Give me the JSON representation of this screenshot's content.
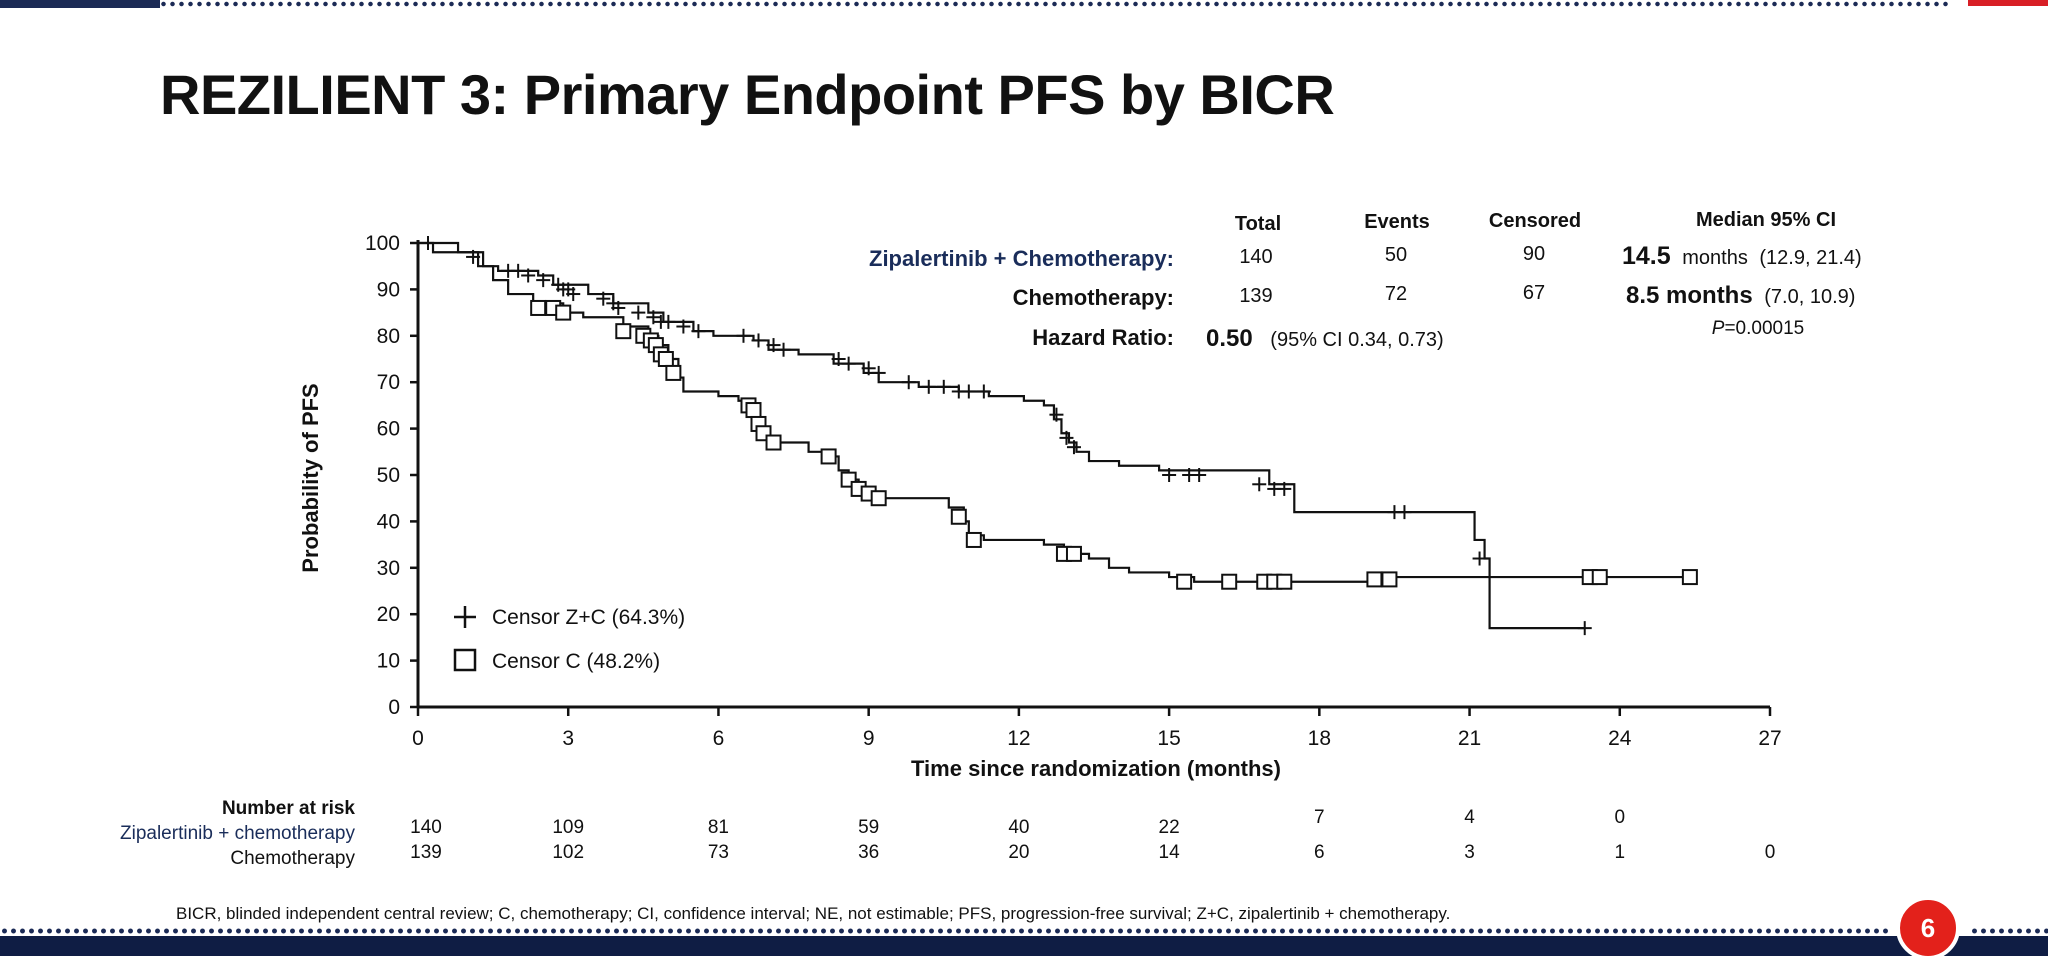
{
  "slide": {
    "title": "REZILIENT 3: Primary Endpoint PFS by BICR",
    "page_number": "6",
    "footnote": "BICR, blinded independent central review; C, chemotherapy; CI, confidence interval; NE, not estimable; PFS, progression-free survival; Z+C, zipalertinib + chemotherapy.",
    "colors": {
      "accent_red": "#e3211b",
      "navy": "#0f1d44",
      "zc_label": "#1a2d5a"
    }
  },
  "chart_data": {
    "type": "line",
    "xlabel": "Time since randomization (months)",
    "ylabel": "Probability of PFS",
    "xlim": [
      0,
      27
    ],
    "ylim": [
      0,
      100
    ],
    "x_ticks": [
      "0",
      "3",
      "6",
      "9",
      "12",
      "15",
      "18",
      "21",
      "24",
      "27"
    ],
    "y_ticks": [
      "0",
      "10",
      "20",
      "30",
      "40",
      "50",
      "60",
      "70",
      "80",
      "90",
      "100"
    ],
    "summary_table": {
      "headers": [
        "Total",
        "Events",
        "Censored",
        "Median 95% CI"
      ],
      "rows": [
        {
          "label": "Zipalertinib + Chemotherapy:",
          "total": "140",
          "events": "50",
          "censored": "90",
          "median": "14.5",
          "median_unit": "months",
          "ci": "(12.9, 21.4)"
        },
        {
          "label": "Chemotherapy:",
          "total": "139",
          "events": "72",
          "censored": "67",
          "median": "8.5 months",
          "median_unit": "",
          "ci": "(7.0, 10.9)"
        }
      ],
      "hazard_label": "Hazard Ratio:",
      "hazard_value": "0.50",
      "hazard_ci": "(95% CI 0.34, 0.73)",
      "p_prefix": "P",
      "p_value": "=0.00015"
    },
    "legend": [
      {
        "marker": "plus",
        "label": "Censor Z+C (64.3%)"
      },
      {
        "marker": "square",
        "label": "Censor C (48.2%)"
      }
    ],
    "legend_position": "bottom-left",
    "series": [
      {
        "name": "Zipalertinib + Chemotherapy",
        "marker": "plus",
        "steps": [
          [
            0,
            100
          ],
          [
            0.8,
            98
          ],
          [
            1.2,
            95
          ],
          [
            1.6,
            94
          ],
          [
            2.4,
            93
          ],
          [
            2.7,
            91
          ],
          [
            3.4,
            89
          ],
          [
            3.9,
            87
          ],
          [
            4.6,
            85
          ],
          [
            4.9,
            83
          ],
          [
            5.5,
            81
          ],
          [
            5.9,
            80
          ],
          [
            6.7,
            79
          ],
          [
            7.0,
            77
          ],
          [
            7.6,
            76
          ],
          [
            8.3,
            74
          ],
          [
            8.9,
            72
          ],
          [
            9.2,
            70
          ],
          [
            10.0,
            69
          ],
          [
            10.8,
            68
          ],
          [
            11.4,
            67
          ],
          [
            12.1,
            66
          ],
          [
            12.5,
            65
          ],
          [
            12.7,
            62
          ],
          [
            12.85,
            59
          ],
          [
            13.0,
            57
          ],
          [
            13.15,
            55
          ],
          [
            13.4,
            53
          ],
          [
            14.0,
            52
          ],
          [
            14.8,
            51
          ],
          [
            17.0,
            48
          ],
          [
            17.5,
            42
          ],
          [
            21.0,
            42
          ],
          [
            21.1,
            36
          ],
          [
            21.3,
            32
          ],
          [
            21.4,
            17
          ],
          [
            23.3,
            17
          ]
        ],
        "censored": [
          [
            0.2,
            100
          ],
          [
            1.1,
            97
          ],
          [
            1.8,
            94
          ],
          [
            2.0,
            94
          ],
          [
            2.2,
            93
          ],
          [
            2.5,
            92
          ],
          [
            2.8,
            91
          ],
          [
            2.9,
            90
          ],
          [
            3.0,
            90
          ],
          [
            3.1,
            89
          ],
          [
            3.7,
            88
          ],
          [
            3.9,
            87
          ],
          [
            4.0,
            86
          ],
          [
            4.4,
            85
          ],
          [
            4.7,
            84
          ],
          [
            4.85,
            83
          ],
          [
            5.0,
            83
          ],
          [
            5.3,
            82
          ],
          [
            5.6,
            81
          ],
          [
            6.5,
            80
          ],
          [
            6.8,
            79
          ],
          [
            7.1,
            78
          ],
          [
            7.3,
            77
          ],
          [
            8.4,
            75
          ],
          [
            8.6,
            74
          ],
          [
            9.0,
            73
          ],
          [
            9.2,
            72
          ],
          [
            9.8,
            70
          ],
          [
            10.2,
            69
          ],
          [
            10.5,
            69
          ],
          [
            10.8,
            68
          ],
          [
            11.0,
            68
          ],
          [
            11.3,
            68
          ],
          [
            12.75,
            63
          ],
          [
            12.95,
            58
          ],
          [
            13.1,
            56
          ],
          [
            15.0,
            50
          ],
          [
            15.4,
            50
          ],
          [
            15.6,
            50
          ],
          [
            16.8,
            48
          ],
          [
            17.1,
            47
          ],
          [
            17.3,
            47
          ],
          [
            19.5,
            42
          ],
          [
            19.7,
            42
          ],
          [
            21.2,
            32
          ],
          [
            23.3,
            17
          ]
        ]
      },
      {
        "name": "Chemotherapy",
        "marker": "square",
        "steps": [
          [
            0,
            100
          ],
          [
            0.3,
            98
          ],
          [
            1.3,
            95
          ],
          [
            1.5,
            92
          ],
          [
            1.8,
            89
          ],
          [
            2.3,
            87
          ],
          [
            2.9,
            85
          ],
          [
            3.3,
            84
          ],
          [
            4.1,
            82
          ],
          [
            4.6,
            80
          ],
          [
            4.8,
            78
          ],
          [
            5.0,
            75
          ],
          [
            5.2,
            71
          ],
          [
            5.3,
            68
          ],
          [
            6.0,
            67
          ],
          [
            6.4,
            66
          ],
          [
            6.6,
            65
          ],
          [
            6.75,
            62
          ],
          [
            6.8,
            60
          ],
          [
            6.95,
            58
          ],
          [
            7.1,
            57
          ],
          [
            7.8,
            55
          ],
          [
            8.2,
            54
          ],
          [
            8.4,
            51
          ],
          [
            8.6,
            49
          ],
          [
            8.8,
            47
          ],
          [
            9.0,
            45
          ],
          [
            9.3,
            45
          ],
          [
            10.2,
            45
          ],
          [
            10.6,
            43
          ],
          [
            10.9,
            40
          ],
          [
            11.0,
            37
          ],
          [
            11.3,
            36
          ],
          [
            12.5,
            35
          ],
          [
            12.9,
            33
          ],
          [
            13.4,
            32
          ],
          [
            13.8,
            30
          ],
          [
            14.2,
            29
          ],
          [
            15.0,
            28
          ],
          [
            15.5,
            27
          ],
          [
            19.5,
            28
          ],
          [
            23.5,
            28
          ],
          [
            25.5,
            28
          ]
        ],
        "censored": [
          [
            2.4,
            86
          ],
          [
            2.7,
            86
          ],
          [
            2.9,
            85
          ],
          [
            4.1,
            81
          ],
          [
            4.5,
            80
          ],
          [
            4.65,
            79
          ],
          [
            4.75,
            78
          ],
          [
            4.85,
            76
          ],
          [
            4.95,
            75
          ],
          [
            5.1,
            72
          ],
          [
            6.6,
            65
          ],
          [
            6.7,
            64
          ],
          [
            6.8,
            61
          ],
          [
            6.9,
            59
          ],
          [
            7.1,
            57
          ],
          [
            8.2,
            54
          ],
          [
            8.6,
            49
          ],
          [
            8.8,
            47
          ],
          [
            9.0,
            46
          ],
          [
            9.2,
            45
          ],
          [
            10.8,
            41
          ],
          [
            11.1,
            36
          ],
          [
            12.9,
            33
          ],
          [
            13.1,
            33
          ],
          [
            15.3,
            27
          ],
          [
            16.2,
            27
          ],
          [
            16.9,
            27
          ],
          [
            17.1,
            27
          ],
          [
            17.3,
            27
          ],
          [
            19.1,
            27.5
          ],
          [
            19.4,
            27.5
          ],
          [
            23.4,
            28
          ],
          [
            23.6,
            28
          ],
          [
            25.4,
            28
          ]
        ]
      }
    ],
    "risk_table": {
      "title": "Number at risk",
      "times": [
        0,
        3,
        6,
        9,
        12,
        15,
        18,
        21,
        24,
        27
      ],
      "rows": [
        {
          "label": "Zipalertinib + chemotherapy",
          "counts": [
            "140",
            "109",
            "81",
            "59",
            "40",
            "22",
            "7",
            "4",
            "0",
            ""
          ]
        },
        {
          "label": "Chemotherapy",
          "counts": [
            "139",
            "102",
            "73",
            "36",
            "20",
            "14",
            "6",
            "3",
            "1",
            "0"
          ]
        }
      ]
    }
  }
}
